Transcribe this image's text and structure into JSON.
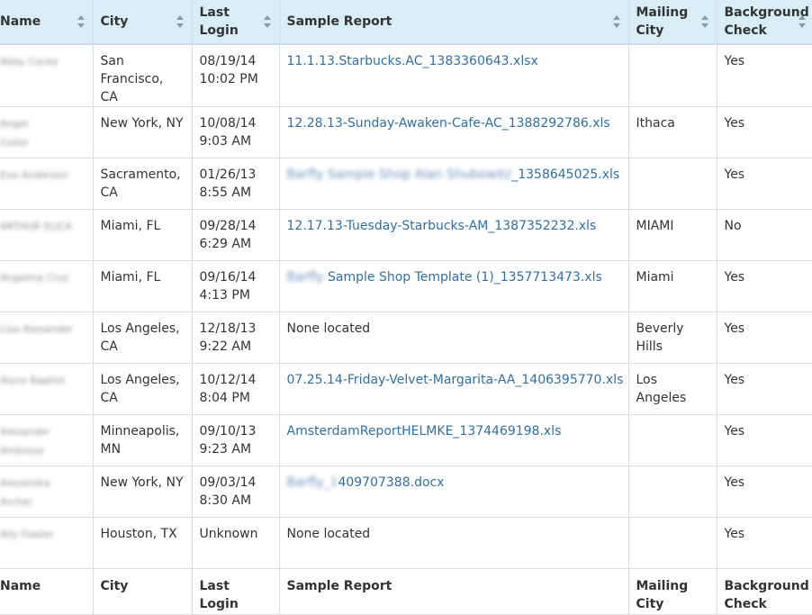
{
  "table": {
    "headers": {
      "name": "Name",
      "city": "City",
      "last_login": "Last Login",
      "sample_report": "Sample Report",
      "mailing_city": "Mailing City",
      "background_check": "Background Check"
    },
    "rows": [
      {
        "name_line1": "Abby Cocke",
        "name_line2": "",
        "city": "San Francisco, CA",
        "login_date": "08/19/14",
        "login_time": "10:02 PM",
        "report_hidden": "",
        "report_text": "11.1.13.Starbucks.AC_1383360643.xlsx",
        "report_is_link": true,
        "mailing_city": "",
        "background_check": "Yes"
      },
      {
        "name_line1": "Angel",
        "name_line2": "Cellor",
        "city": "New York, NY",
        "login_date": "10/08/14",
        "login_time": "9:03 AM",
        "report_hidden": "",
        "report_text": "12.28.13-Sunday-Awaken-Cafe-AC_1388292786.xls",
        "report_is_link": true,
        "mailing_city": "Ithaca",
        "background_check": "Yes"
      },
      {
        "name_line1": "Eve Andersen",
        "name_line2": "",
        "city": "Sacramento, CA",
        "login_date": "01/26/13",
        "login_time": "8:55 AM",
        "report_hidden": "Barfly Sample Shop Alan Shubowitz",
        "report_text": "_1358645025.xls",
        "report_is_link": true,
        "mailing_city": "",
        "background_check": "Yes"
      },
      {
        "name_line1": "ARTHUR ELICA",
        "name_line2": "",
        "city": "Miami, FL",
        "login_date": "09/28/14",
        "login_time": "6:29 AM",
        "report_hidden": "",
        "report_text": "12.17.13-Tuesday-Starbucks-AM_1387352232.xls",
        "report_is_link": true,
        "mailing_city": "MIAMI",
        "background_check": "No"
      },
      {
        "name_line1": "Angelina Cruz",
        "name_line2": "",
        "city": "Miami, FL",
        "login_date": "09/16/14",
        "login_time": "4:13 PM",
        "report_hidden": "Barfly",
        "report_text": " Sample Shop Template (1)_1357713473.xls",
        "report_is_link": true,
        "mailing_city": "Miami",
        "background_check": "Yes"
      },
      {
        "name_line1": "Lisa Alexander",
        "name_line2": "",
        "city": "Los Angeles, CA",
        "login_date": "12/18/13",
        "login_time": "9:22 AM",
        "report_hidden": "",
        "report_text": "None located",
        "report_is_link": false,
        "mailing_city": "Beverly Hills",
        "background_check": "Yes"
      },
      {
        "name_line1": "Alyce Baptist",
        "name_line2": "",
        "city": "Los Angeles, CA",
        "login_date": "10/12/14",
        "login_time": "8:04 PM",
        "report_hidden": "",
        "report_text": "07.25.14-Friday-Velvet-Margarita-AA_1406395770.xls",
        "report_is_link": true,
        "mailing_city": "Los Angeles",
        "background_check": "Yes"
      },
      {
        "name_line1": "Alexander",
        "name_line2": "Ambrose",
        "city": "Minneapolis, MN",
        "login_date": "09/10/13",
        "login_time": "9:23 AM",
        "report_hidden": "",
        "report_text": "AmsterdamReportHELMKE_1374469198.xls",
        "report_is_link": true,
        "mailing_city": "",
        "background_check": "Yes"
      },
      {
        "name_line1": "Alexandra",
        "name_line2": "Archer",
        "city": "New York, NY",
        "login_date": "09/03/14",
        "login_time": "8:30 AM",
        "report_hidden": "Barfly_1",
        "report_text": "409707388.docx",
        "report_is_link": true,
        "mailing_city": "",
        "background_check": "Yes"
      },
      {
        "name_line1": "Ally Fowler",
        "name_line2": "",
        "city": "Houston, TX",
        "login_date": "Unknown",
        "login_time": "",
        "report_hidden": "",
        "report_text": "None located",
        "report_is_link": false,
        "mailing_city": "",
        "background_check": "Yes"
      }
    ]
  },
  "icons": {
    "sort": "sort-icon"
  },
  "colors": {
    "header_bg": "#d9edf7",
    "link": "#2f6fa7",
    "border": "#dddddd"
  }
}
